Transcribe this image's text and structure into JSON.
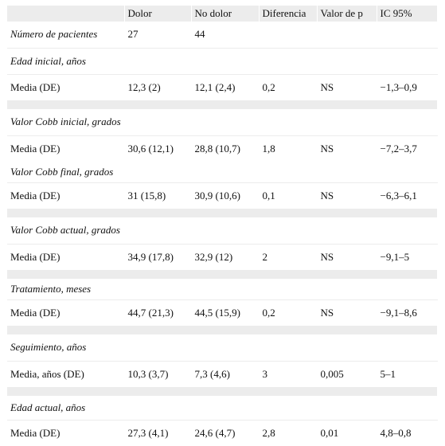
{
  "header": [
    "",
    "Dolor",
    "No dolor",
    "Diferencia",
    "Valor de p",
    "IC 95%"
  ],
  "patients": {
    "label": "Número de pacientes",
    "dolor": "27",
    "nodolor": "44"
  },
  "groups": [
    {
      "title": "Edad inicial, años",
      "row": [
        "Media (DE)",
        "12,3 (2)",
        "12,1 (2,4)",
        "0,2",
        "NS",
        "−1,3–0,9"
      ]
    },
    {
      "title": "Valor Cobb inicial, grados",
      "row": [
        "Media (DE)",
        "30,6 (12,1)",
        "28,8 (10,7)",
        "1,8",
        "NS",
        "−7,2–3,7"
      ]
    },
    {
      "title": "Valor Cobb final, grados",
      "row": [
        "Media (DE)",
        "31 (15,8)",
        "30,9 (10,6)",
        "0,1",
        "NS",
        "−6,3–6,1"
      ]
    },
    {
      "title": "Valor Cobb actual, grados",
      "row": [
        "Media (DE)",
        "34,9 (17,8)",
        "32,9 (12)",
        "2",
        "NS",
        "−9,1–5"
      ]
    },
    {
      "title": "Tratamiento, meses",
      "row": [
        "Media (DE)",
        "44,7 (21,3)",
        "44,5 (15,9)",
        "0,2",
        "NS",
        "−9,1–8,6"
      ]
    },
    {
      "title": "Seguimiento, años",
      "row": [
        "Media, años (DE)",
        "10,3 (3,7)",
        "7,3 (4,6)",
        "3",
        "0,005",
        "5–1"
      ]
    },
    {
      "title": "Edad actual, años",
      "row": [
        "Media (DE)",
        "27,3 (4,1)",
        "24,6 (4,7)",
        "2,8",
        "0,01",
        "4,8–0,8"
      ]
    }
  ]
}
